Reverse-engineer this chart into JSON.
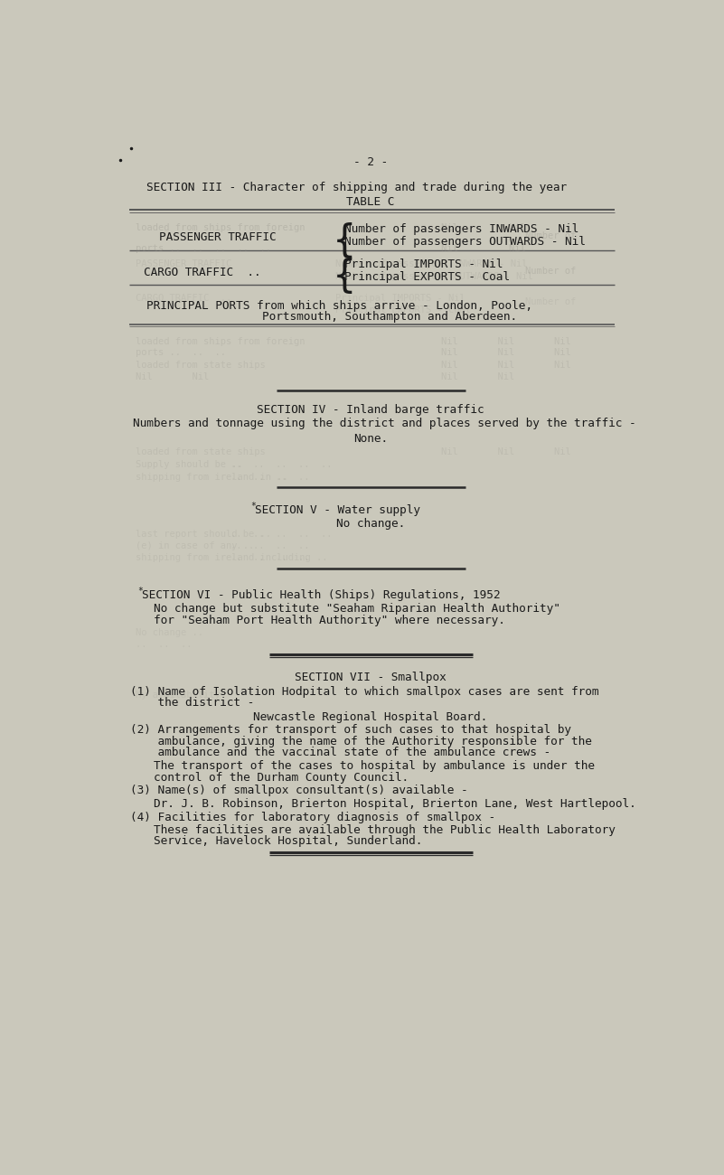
{
  "bg_color": "#cac8bb",
  "table_bg": "#d4d0c4",
  "text_color": "#1a1a1a",
  "page_num": "- 2 -",
  "section3_title": "SECTION III - Character of shipping and trade during the year",
  "table_c": "TABLE C",
  "passenger_label": "PASSENGER TRAFFIC",
  "passenger_line1": "Number of passengers INWARDS - Nil",
  "passenger_line2": "Number of passengers OUTWARDS - Nil",
  "cargo_label": "CARGO TRAFFIC  ..",
  "cargo_line1": "Principal IMPORTS - Nil",
  "cargo_line2": "Principal EXPORTS - Coal",
  "principal_ports_line1": "PRINCIPAL PORTS from which ships arrive - London, Poole,",
  "principal_ports_line2": "Portsmouth, Southampton and Aberdeen.",
  "section4_title": "SECTION IV - Inland barge traffic",
  "section4_body": "Numbers and tonnage using the district and places served by the traffic -",
  "section4_answer": "None.",
  "section5_marker": "*",
  "section5_title": "SECTION V - Water supply",
  "section5_body": "No change.",
  "section6_marker": "*",
  "section6_title": "SECTION VI - Public Health (Ships) Regulations, 1952",
  "section6_line1": "No change but substitute \"Seaham Riparian Health Authority\"",
  "section6_line2": "for \"Seaham Port Health Authority\" where necessary.",
  "section7_title": "SECTION VII - Smallpox",
  "s7_1_label1": "(1) Name of Isolation Hodpital to which smallpox cases are sent from",
  "s7_1_label2": "    the district -",
  "s7_1_answer": "Newcastle Regional Hospital Board.",
  "s7_2_label1": "(2) Arrangements for transport of such cases to that hospital by",
  "s7_2_label2": "    ambulance, giving the name of the Authority responsible for the",
  "s7_2_label3": "    ambulance and the vaccinal state of the ambulance crews -",
  "s7_2_answer1": "The transport of the cases to hospital by ambulance is under the",
  "s7_2_answer2": "control of the Durham County Council.",
  "s7_3_label": "(3) Name(s) of smallpox consultant(s) available -",
  "s7_3_answer": "Dr. J. B. Robinson, Brierton Hospital, Brierton Lane, West Hartlepool.",
  "s7_4_label": "(4) Facilities for laboratory diagnosis of smallpox -",
  "s7_4_answer1": "These facilities are available through the Public Health Laboratory",
  "s7_4_answer2": "Service, Havelock Hospital, Sunderland.",
  "font_size": 9.2,
  "mono_font": "DejaVu Sans Mono",
  "line_color": "#555555",
  "ghost_color": "#8a8880",
  "ghost_alpha": 0.28
}
